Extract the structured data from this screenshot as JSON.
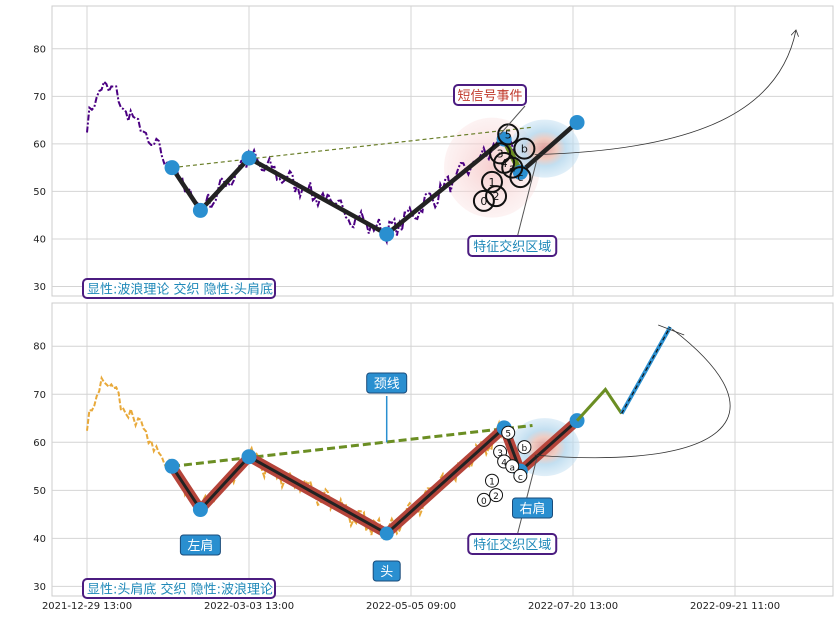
{
  "chart_data": {
    "type": "line",
    "x_ticks": [
      "2021-12-29 13:00",
      "2022-03-03 13:00",
      "2022-05-05 09:00",
      "2022-07-20 13:00",
      "2022-09-21 11:00"
    ],
    "panels": [
      {
        "ylim": [
          28,
          89
        ],
        "yticks": [
          30,
          40,
          50,
          60,
          70,
          80
        ],
        "pattern_points": [
          {
            "t": 0.21,
            "y": 55
          },
          {
            "t": 0.28,
            "y": 46
          },
          {
            "t": 0.4,
            "y": 57
          },
          {
            "t": 0.74,
            "y": 41
          },
          {
            "t": 1.03,
            "y": 61
          },
          {
            "t": 1.07,
            "y": 54
          },
          {
            "t": 1.21,
            "y": 64.5
          }
        ],
        "wave_labels": [
          "0",
          "1",
          "2",
          "3",
          "4",
          "5",
          "a",
          "b",
          "c"
        ],
        "annotations": {
          "short_signal": "短信号事件",
          "feature_zone": "特征交织区域"
        },
        "legend_box": "显性:波浪理论 交织 隐性:头肩底",
        "price_color": "#4b0082"
      },
      {
        "ylim": [
          28,
          89
        ],
        "yticks": [
          30,
          40,
          50,
          60,
          70,
          80
        ],
        "pattern_points": [
          {
            "t": 0.21,
            "y": 55
          },
          {
            "t": 0.28,
            "y": 46
          },
          {
            "t": 0.4,
            "y": 57
          },
          {
            "t": 0.74,
            "y": 41
          },
          {
            "t": 1.03,
            "y": 63
          },
          {
            "t": 1.07,
            "y": 54
          },
          {
            "t": 1.21,
            "y": 64.5
          }
        ],
        "wave_labels": [
          "0",
          "1",
          "2",
          "3",
          "4",
          "5",
          "a",
          "b",
          "c"
        ],
        "annotations": {
          "left_shoulder": "左肩",
          "head": "头",
          "right_shoulder": "右肩",
          "neckline": "颈线",
          "feature_zone": "特征交织区域"
        },
        "legend_box": "显性:头肩底 交织 隐性:波浪理论",
        "price_color": "#e8a93a",
        "projection": [
          {
            "t": 1.21,
            "y": 64.5
          },
          {
            "t": 1.28,
            "y": 71
          },
          {
            "t": 1.32,
            "y": 66
          },
          {
            "t": 1.44,
            "y": 84
          }
        ]
      }
    ]
  }
}
